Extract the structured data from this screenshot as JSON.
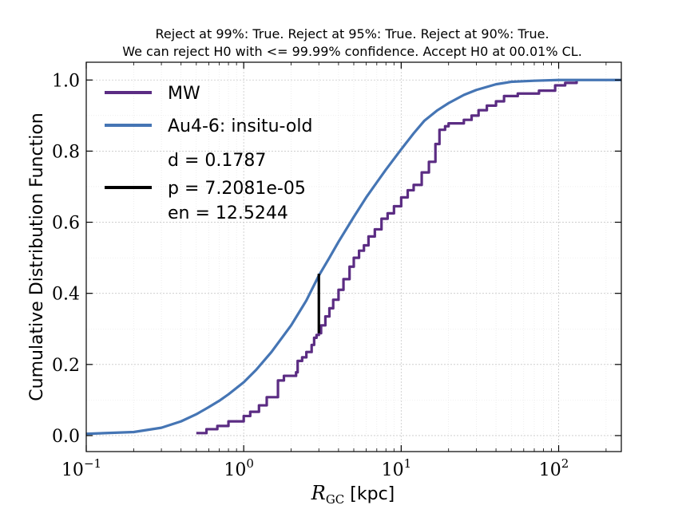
{
  "chart_data": {
    "type": "line",
    "title_lines": [
      "Reject at 99%: True. Reject at 95%: True. Reject at 90%: True.",
      "We can reject H0 with <= 99.99% confidence. Accept H0 at 00.01% CL."
    ],
    "xlabel_main": "R",
    "xlabel_sub": "GC",
    "xlabel_unit": " [kpc]",
    "ylabel": "Cumulative Distribution Function",
    "xscale": "log",
    "xlim": [
      0.1,
      250
    ],
    "ylim": [
      -0.045,
      1.05
    ],
    "grid": true,
    "x_ticks": [
      {
        "value": 0.1,
        "base": "10",
        "exp": "−1"
      },
      {
        "value": 1,
        "base": "10",
        "exp": "0"
      },
      {
        "value": 10,
        "base": "10",
        "exp": "1"
      },
      {
        "value": 100,
        "base": "10",
        "exp": "2"
      }
    ],
    "y_ticks": [
      {
        "value": 0.0,
        "label": "0.0"
      },
      {
        "value": 0.2,
        "label": "0.2"
      },
      {
        "value": 0.4,
        "label": "0.4"
      },
      {
        "value": 0.6,
        "label": "0.6"
      },
      {
        "value": 0.8,
        "label": "0.8"
      },
      {
        "value": 1.0,
        "label": "1.0"
      }
    ],
    "legend_position": "top-left",
    "series": [
      {
        "name": "MW",
        "color": "#5b2c83",
        "style": "step",
        "points": [
          [
            0.5,
            0.007
          ],
          [
            0.58,
            0.007
          ],
          [
            0.58,
            0.018
          ],
          [
            0.68,
            0.018
          ],
          [
            0.68,
            0.027
          ],
          [
            0.8,
            0.027
          ],
          [
            0.8,
            0.04
          ],
          [
            1.0,
            0.04
          ],
          [
            1.0,
            0.055
          ],
          [
            1.1,
            0.055
          ],
          [
            1.1,
            0.067
          ],
          [
            1.25,
            0.067
          ],
          [
            1.25,
            0.085
          ],
          [
            1.4,
            0.085
          ],
          [
            1.4,
            0.108
          ],
          [
            1.65,
            0.108
          ],
          [
            1.65,
            0.155
          ],
          [
            1.8,
            0.155
          ],
          [
            1.8,
            0.168
          ],
          [
            2.0,
            0.168
          ],
          [
            2.15,
            0.178
          ],
          [
            2.2,
            0.21
          ],
          [
            2.35,
            0.22
          ],
          [
            2.5,
            0.235
          ],
          [
            2.7,
            0.255
          ],
          [
            2.8,
            0.275
          ],
          [
            2.9,
            0.283
          ],
          [
            3.0,
            0.288
          ],
          [
            3.1,
            0.31
          ],
          [
            3.3,
            0.335
          ],
          [
            3.5,
            0.358
          ],
          [
            3.7,
            0.382
          ],
          [
            4.0,
            0.41
          ],
          [
            4.3,
            0.44
          ],
          [
            4.7,
            0.475
          ],
          [
            5.0,
            0.5
          ],
          [
            5.4,
            0.52
          ],
          [
            5.8,
            0.535
          ],
          [
            6.2,
            0.56
          ],
          [
            6.8,
            0.58
          ],
          [
            7.5,
            0.61
          ],
          [
            8.2,
            0.625
          ],
          [
            9.0,
            0.645
          ],
          [
            10.0,
            0.67
          ],
          [
            11.0,
            0.69
          ],
          [
            12.0,
            0.705
          ],
          [
            13.5,
            0.74
          ],
          [
            15.0,
            0.77
          ],
          [
            16.5,
            0.82
          ],
          [
            17.5,
            0.86
          ],
          [
            19.0,
            0.87
          ],
          [
            20.0,
            0.878
          ],
          [
            22.0,
            0.878
          ],
          [
            25.0,
            0.888
          ],
          [
            28.0,
            0.9
          ],
          [
            31.0,
            0.915
          ],
          [
            35.0,
            0.928
          ],
          [
            40.0,
            0.94
          ],
          [
            45.0,
            0.955
          ],
          [
            55.0,
            0.962
          ],
          [
            65.0,
            0.962
          ],
          [
            75.0,
            0.97
          ],
          [
            95.0,
            0.985
          ],
          [
            110.0,
            0.992
          ],
          [
            130.0,
            0.997
          ]
        ]
      },
      {
        "name": "Au4-6: insitu-old",
        "color": "#4575b4",
        "style": "line",
        "points": [
          [
            0.1,
            0.005
          ],
          [
            0.2,
            0.01
          ],
          [
            0.3,
            0.022
          ],
          [
            0.4,
            0.04
          ],
          [
            0.5,
            0.06
          ],
          [
            0.6,
            0.08
          ],
          [
            0.7,
            0.098
          ],
          [
            0.8,
            0.116
          ],
          [
            1.0,
            0.15
          ],
          [
            1.2,
            0.185
          ],
          [
            1.5,
            0.235
          ],
          [
            2.0,
            0.31
          ],
          [
            2.5,
            0.38
          ],
          [
            3.0,
            0.45
          ],
          [
            3.5,
            0.5
          ],
          [
            4.0,
            0.545
          ],
          [
            5.0,
            0.615
          ],
          [
            6.0,
            0.67
          ],
          [
            7.0,
            0.712
          ],
          [
            8.0,
            0.748
          ],
          [
            10.0,
            0.805
          ],
          [
            12.0,
            0.85
          ],
          [
            14.0,
            0.885
          ],
          [
            17.0,
            0.915
          ],
          [
            20.0,
            0.935
          ],
          [
            25.0,
            0.958
          ],
          [
            30.0,
            0.972
          ],
          [
            40.0,
            0.988
          ],
          [
            50.0,
            0.995
          ],
          [
            70.0,
            0.998
          ],
          [
            100.0,
            1.0
          ],
          [
            250.0,
            1.0
          ]
        ]
      }
    ],
    "ks_segment": {
      "x": 3.0,
      "y_low": 0.288,
      "y_high": 0.455,
      "color": "#000000"
    },
    "legend_ks_lines": [
      "d = 0.1787",
      "p = 7.2081e-05",
      "en = 12.5244"
    ]
  }
}
